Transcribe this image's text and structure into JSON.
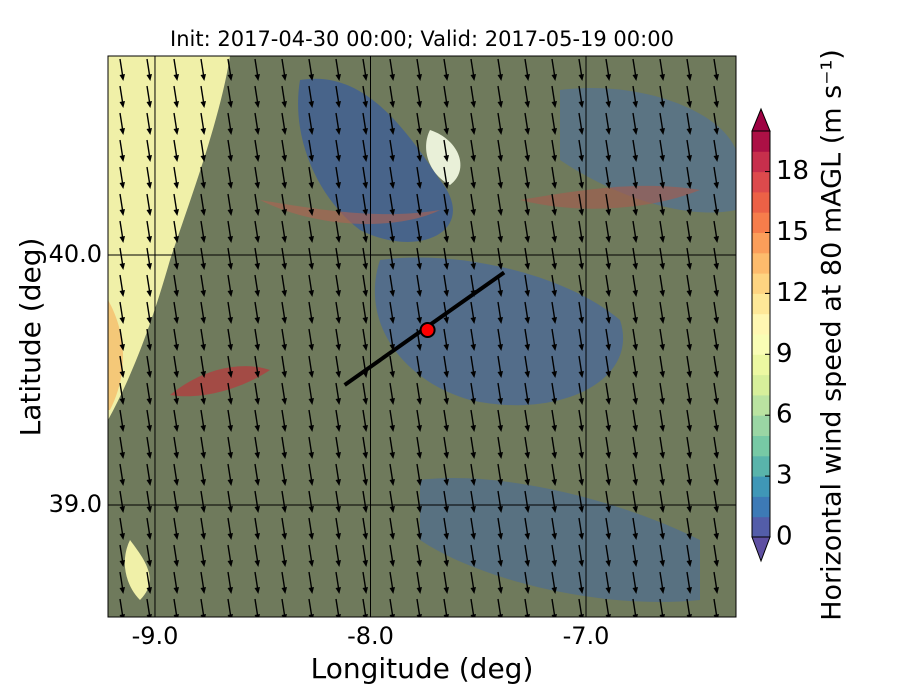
{
  "chart_data": {
    "type": "map",
    "title": "Init: 2017-04-30 00:00; Valid: 2017-05-19 00:00",
    "xlabel": "Longitude (deg)",
    "ylabel": "Latitude (deg)",
    "xlim": [
      -9.218,
      -6.304
    ],
    "ylim": [
      38.552,
      40.796
    ],
    "xticks": [
      {
        "value": -9,
        "label": "-9.0"
      },
      {
        "value": -8,
        "label": "-8.0"
      },
      {
        "value": -7,
        "label": "-7.0"
      }
    ],
    "yticks": [
      {
        "value": 39,
        "label": "39.0"
      },
      {
        "value": 40,
        "label": "40.0"
      }
    ],
    "grid": true,
    "transect": {
      "lon": [
        -8.12,
        -7.38
      ],
      "lat": [
        39.48,
        39.93
      ],
      "color": "#000000"
    },
    "site": {
      "lon": -7.735,
      "lat": 39.7,
      "color": "#ff0000"
    },
    "colorbar": {
      "label": "Horizontal wind speed at 80 mAGL (m s⁻¹)",
      "lim": [
        0,
        20
      ],
      "ticks": [
        0,
        3,
        6,
        9,
        12,
        15,
        18
      ],
      "colors": [
        "#5e4fa2",
        "#3288bd",
        "#66c2a5",
        "#abdda4",
        "#e6f598",
        "#ffffbf",
        "#fee08b",
        "#fdae61",
        "#f46d43",
        "#d53e4f",
        "#9e0142"
      ]
    }
  }
}
